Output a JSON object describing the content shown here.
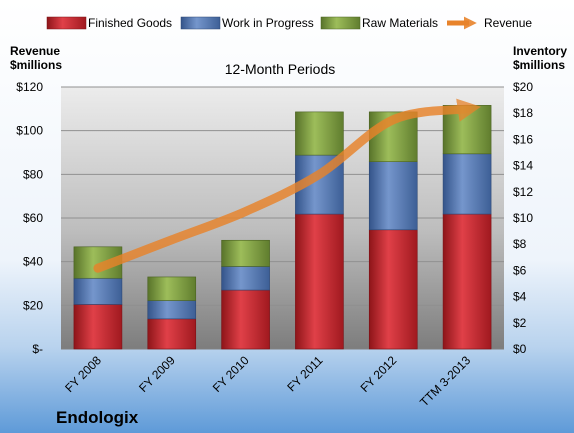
{
  "chart_data": {
    "type": "bar",
    "title": "12-Month Periods",
    "company": "Endologix",
    "categories": [
      "FY 2008",
      "FY 2009",
      "FY 2010",
      "FY 2011",
      "FY 2012",
      "TTM 3-2013"
    ],
    "series": [
      {
        "name": "Finished Goods",
        "axis": "inventory",
        "stack": true,
        "color": "#c0242c",
        "values": [
          3.4,
          2.3,
          4.5,
          10.3,
          9.1,
          10.3
        ]
      },
      {
        "name": "Work in Progress",
        "axis": "inventory",
        "stack": true,
        "color": "#4f76b3",
        "values": [
          2.0,
          1.4,
          1.8,
          4.5,
          5.2,
          4.6
        ]
      },
      {
        "name": "Raw Materials",
        "axis": "inventory",
        "stack": true,
        "color": "#7d9d3c",
        "values": [
          2.4,
          1.8,
          2.0,
          3.3,
          3.8,
          3.7
        ]
      },
      {
        "name": "Revenue",
        "axis": "revenue",
        "type": "line",
        "color": "#e8832a",
        "values": [
          37,
          50,
          63,
          80,
          105,
          110
        ]
      }
    ],
    "left_axis": {
      "label_line1": "Revenue",
      "label_line2": "$millions",
      "min": 0,
      "max": 120,
      "ticks": [
        "$-",
        "$20",
        "$40",
        "$60",
        "$80",
        "$100",
        "$120"
      ]
    },
    "right_axis": {
      "label_line1": "Inventory",
      "label_line2": "$millions",
      "min": 0,
      "max": 20,
      "ticks": [
        "$0",
        "$2",
        "$4",
        "$6",
        "$8",
        "$10",
        "$12",
        "$14",
        "$16",
        "$18",
        "$20"
      ]
    },
    "grid": true,
    "legend": "top"
  }
}
